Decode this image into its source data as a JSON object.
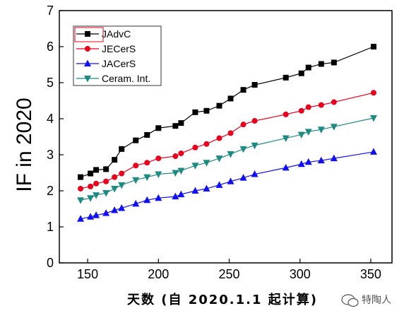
{
  "chart_data": {
    "type": "line",
    "title": "",
    "xlabel": "天数 (自 2020.1.1 起计算)",
    "ylabel": "IF in 2020",
    "xlim": [
      130,
      365
    ],
    "ylim": [
      0,
      7
    ],
    "x_ticks": [
      150,
      200,
      250,
      300,
      350
    ],
    "y_ticks": [
      0,
      1,
      2,
      3,
      4,
      5,
      6,
      7
    ],
    "grid": false,
    "legend_position": "top-left",
    "series": [
      {
        "name": "JAdvC",
        "color": "#000000",
        "marker": "square",
        "x": [
          145,
          152,
          156,
          163,
          169,
          174,
          184,
          192,
          200,
          212,
          216,
          226,
          234,
          243,
          251,
          260,
          268,
          290,
          301,
          306,
          315,
          324,
          352
        ],
        "y": [
          2.38,
          2.48,
          2.58,
          2.6,
          2.86,
          3.16,
          3.4,
          3.55,
          3.74,
          3.8,
          3.88,
          4.18,
          4.22,
          4.36,
          4.56,
          4.8,
          4.94,
          5.14,
          5.26,
          5.42,
          5.52,
          5.56,
          6.0
        ]
      },
      {
        "name": "JECerS",
        "color": "#e8001c",
        "marker": "circle",
        "x": [
          145,
          152,
          156,
          163,
          169,
          174,
          184,
          192,
          200,
          212,
          216,
          226,
          234,
          243,
          251,
          260,
          268,
          290,
          301,
          306,
          315,
          324,
          352
        ],
        "y": [
          2.06,
          2.12,
          2.2,
          2.26,
          2.38,
          2.48,
          2.7,
          2.78,
          2.9,
          2.96,
          3.04,
          3.2,
          3.3,
          3.46,
          3.6,
          3.84,
          3.94,
          4.12,
          4.22,
          4.32,
          4.38,
          4.46,
          4.72
        ]
      },
      {
        "name": "JACerS",
        "color": "#1010f0",
        "marker": "triangle-up",
        "x": [
          145,
          152,
          156,
          163,
          169,
          174,
          184,
          192,
          200,
          212,
          216,
          226,
          234,
          243,
          251,
          260,
          268,
          290,
          301,
          306,
          315,
          324,
          352
        ],
        "y": [
          1.22,
          1.28,
          1.32,
          1.38,
          1.46,
          1.52,
          1.64,
          1.74,
          1.8,
          1.84,
          1.9,
          2.0,
          2.06,
          2.16,
          2.26,
          2.36,
          2.46,
          2.64,
          2.74,
          2.8,
          2.84,
          2.9,
          3.08
        ]
      },
      {
        "name": "Ceram. Int.",
        "color": "#1f8a84",
        "marker": "triangle-down",
        "x": [
          145,
          152,
          156,
          163,
          169,
          174,
          184,
          192,
          200,
          212,
          216,
          226,
          234,
          243,
          251,
          260,
          268,
          290,
          301,
          306,
          315,
          324,
          352
        ],
        "y": [
          1.74,
          1.8,
          1.88,
          1.94,
          2.06,
          2.16,
          2.3,
          2.38,
          2.46,
          2.5,
          2.56,
          2.7,
          2.78,
          2.9,
          3.02,
          3.16,
          3.26,
          3.46,
          3.56,
          3.64,
          3.7,
          3.78,
          4.02
        ]
      }
    ]
  },
  "watermark": {
    "text": "特陶人",
    "icon": "chat-bubble-icon"
  }
}
